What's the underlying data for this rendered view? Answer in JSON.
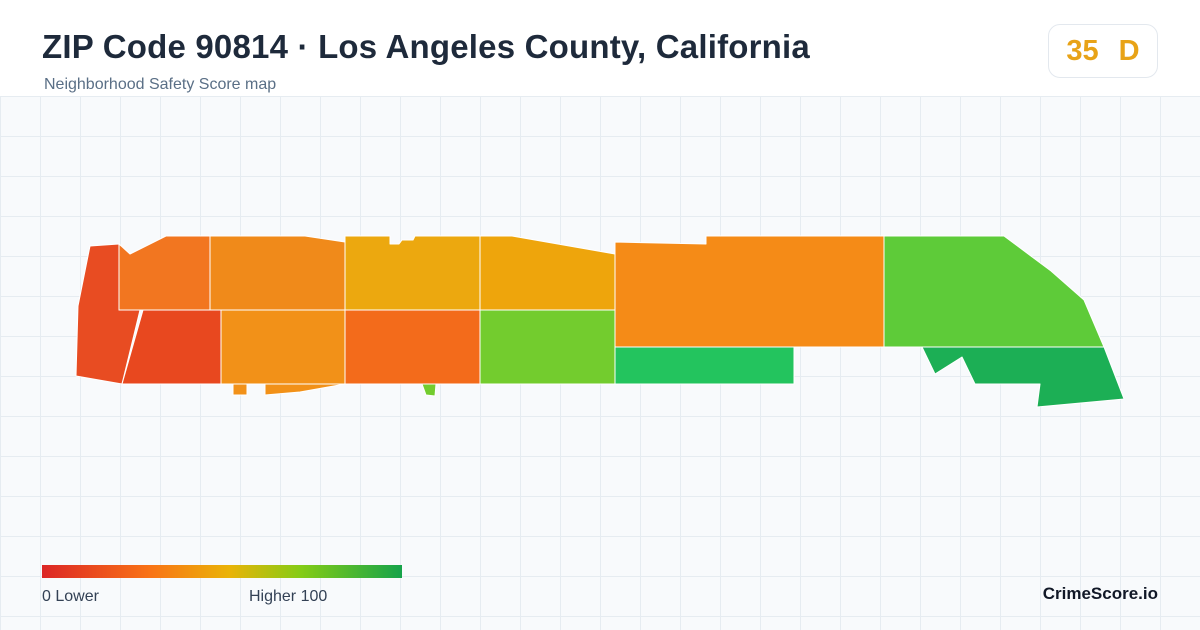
{
  "header": {
    "title": "ZIP Code 90814 · Los Angeles County, California",
    "subtitle": "Neighborhood Safety Score map"
  },
  "score": {
    "value": "35",
    "grade": "D",
    "color": "#e8a317"
  },
  "legend": {
    "min_text": "0  Lower",
    "max_text": "Higher  100",
    "min_value": 0,
    "max_value": 100,
    "colors": [
      "#dc2626",
      "#f97316",
      "#eab308",
      "#84cc16",
      "#16a34a"
    ]
  },
  "brand": "CrimeScore.io",
  "map": {
    "region_colors": {
      "far-west-strip": "#e84c22",
      "west-lower": "#e8481f",
      "north-west": "#f27620",
      "north-center-west": "#f08a1a",
      "north-center": "#eca80f",
      "north-center-east": "#eea50c",
      "south-center-west": "#f29118",
      "south-center": "#f36b1b",
      "south-center-east": "#73cc2e",
      "east-large": "#f58b17",
      "south-east-strip": "#23c45e",
      "far-east-north": "#5ecb39",
      "far-east-south": "#1caf55"
    }
  }
}
